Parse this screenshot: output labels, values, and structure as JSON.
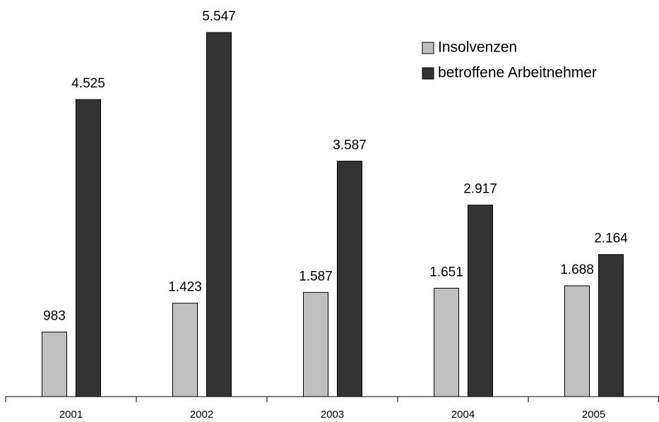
{
  "chart_data": {
    "type": "bar",
    "categories": [
      "2001",
      "2002",
      "2003",
      "2004",
      "2005"
    ],
    "series": [
      {
        "name": "Insolvenzen",
        "color": "#c0c0c0",
        "values": [
          983,
          1423,
          1587,
          1651,
          1688
        ],
        "value_labels": [
          "983",
          "1.423",
          "1.587",
          "1.651",
          "1.688"
        ]
      },
      {
        "name": "betroffene Arbeitnehmer",
        "color": "#333333",
        "values": [
          4525,
          5547,
          3587,
          2917,
          2164
        ],
        "value_labels": [
          "4.525",
          "5.547",
          "3.587",
          "2.917",
          "2.164"
        ]
      }
    ],
    "legend": "upper right"
  }
}
